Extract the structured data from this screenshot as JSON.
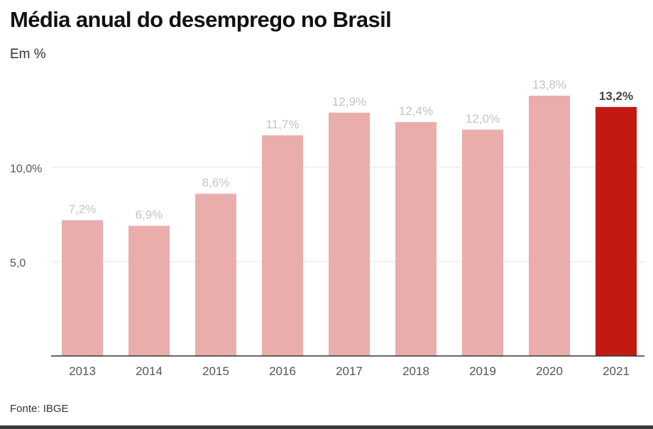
{
  "title": "Média anual do desemprego no Brasil",
  "subtitle": "Em %",
  "source": "Fonte: IBGE",
  "colors": {
    "bar": "#e9aeac",
    "highlight": "#c21a12",
    "value_label": "#c4c4c4",
    "highlight_label": "#444444",
    "tick_label": "#555555",
    "grid": "#e6e6e6",
    "axis": "#333333"
  },
  "chart_data": {
    "type": "bar",
    "title": "Média anual do desemprego no Brasil",
    "subtitle": "Em %",
    "categories": [
      "2013",
      "2014",
      "2015",
      "2016",
      "2017",
      "2018",
      "2019",
      "2020",
      "2021"
    ],
    "values": [
      7.2,
      6.9,
      8.6,
      11.7,
      12.9,
      12.4,
      12.0,
      13.8,
      13.2
    ],
    "value_labels": [
      "7,2%",
      "6,9%",
      "8,6%",
      "11,7%",
      "12,9%",
      "12,4%",
      "12,0%",
      "13,8%",
      "13,2%"
    ],
    "highlight_index": 8,
    "ylim": [
      0,
      15
    ],
    "yticks": [
      {
        "value": 5,
        "label": "5,0"
      },
      {
        "value": 10,
        "label": "10,0%"
      }
    ],
    "grid": true,
    "legend": "none"
  }
}
